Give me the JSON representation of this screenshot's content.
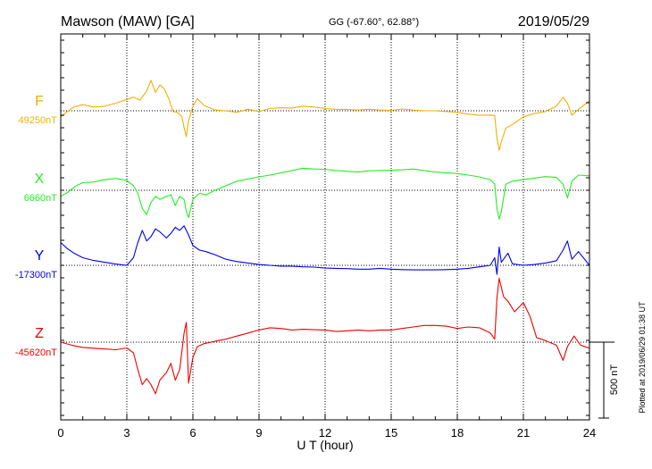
{
  "header": {
    "title": "Mawson (MAW)  [GA]",
    "coords": "GG (-67.60°,  62.88°)",
    "date": "2019/05/29"
  },
  "plotted_note": "Plotted at 2019/06/29 01:38 UT",
  "scale_bar": {
    "label": "500 nT",
    "value_nT": 500
  },
  "chart_data": {
    "type": "line",
    "title": "Mawson (MAW)  [GA]",
    "xlabel": "U T (hour)",
    "xlim": [
      0,
      24
    ],
    "xticks": [
      0,
      3,
      6,
      9,
      12,
      15,
      18,
      21,
      24
    ],
    "grid": true,
    "series": [
      {
        "name": "F",
        "baseline_label": "49250nT",
        "color": "#f0b000",
        "points": [
          [
            0,
            49210
          ],
          [
            0.3,
            49245
          ],
          [
            0.6,
            49275
          ],
          [
            1.0,
            49290
          ],
          [
            1.5,
            49275
          ],
          [
            2.0,
            49280
          ],
          [
            2.5,
            49300
          ],
          [
            3.0,
            49325
          ],
          [
            3.3,
            49340
          ],
          [
            3.6,
            49320
          ],
          [
            3.9,
            49380
          ],
          [
            4.1,
            49450
          ],
          [
            4.3,
            49370
          ],
          [
            4.5,
            49420
          ],
          [
            4.7,
            49395
          ],
          [
            4.9,
            49330
          ],
          [
            5.1,
            49245
          ],
          [
            5.3,
            49240
          ],
          [
            5.5,
            49210
          ],
          [
            5.6,
            49140
          ],
          [
            5.7,
            49080
          ],
          [
            5.8,
            49185
          ],
          [
            6.0,
            49280
          ],
          [
            6.2,
            49330
          ],
          [
            6.5,
            49285
          ],
          [
            7.0,
            49255
          ],
          [
            7.5,
            49250
          ],
          [
            8.0,
            49240
          ],
          [
            8.5,
            49260
          ],
          [
            9.0,
            49245
          ],
          [
            9.5,
            49265
          ],
          [
            10.0,
            49270
          ],
          [
            10.5,
            49268
          ],
          [
            11.0,
            49280
          ],
          [
            11.5,
            49275
          ],
          [
            12.0,
            49265
          ],
          [
            12.5,
            49260
          ],
          [
            13.0,
            49258
          ],
          [
            13.5,
            49255
          ],
          [
            14.0,
            49260
          ],
          [
            14.5,
            49255
          ],
          [
            15.0,
            49253
          ],
          [
            15.5,
            49262
          ],
          [
            16.0,
            49255
          ],
          [
            16.5,
            49250
          ],
          [
            17.0,
            49250
          ],
          [
            17.5,
            49245
          ],
          [
            18.0,
            49240
          ],
          [
            18.5,
            49228
          ],
          [
            19.0,
            49220
          ],
          [
            19.5,
            49222
          ],
          [
            19.7,
            49218
          ],
          [
            19.8,
            49070
          ],
          [
            19.9,
            48990
          ],
          [
            20.0,
            49045
          ],
          [
            20.2,
            49135
          ],
          [
            20.5,
            49160
          ],
          [
            20.8,
            49190
          ],
          [
            21.0,
            49210
          ],
          [
            21.5,
            49232
          ],
          [
            22.0,
            49245
          ],
          [
            22.5,
            49280
          ],
          [
            22.8,
            49340
          ],
          [
            23.0,
            49300
          ],
          [
            23.2,
            49220
          ],
          [
            23.5,
            49260
          ],
          [
            24.0,
            49315
          ]
        ]
      },
      {
        "name": "X",
        "baseline_label": "6660nT",
        "color": "#22ee22",
        "points": [
          [
            0,
            6620
          ],
          [
            0.3,
            6645
          ],
          [
            0.7,
            6690
          ],
          [
            1.0,
            6710
          ],
          [
            1.5,
            6715
          ],
          [
            2.0,
            6730
          ],
          [
            2.5,
            6738
          ],
          [
            3.0,
            6725
          ],
          [
            3.3,
            6690
          ],
          [
            3.5,
            6640
          ],
          [
            3.7,
            6540
          ],
          [
            3.9,
            6500
          ],
          [
            4.1,
            6580
          ],
          [
            4.3,
            6620
          ],
          [
            4.5,
            6600
          ],
          [
            4.8,
            6620
          ],
          [
            5.0,
            6630
          ],
          [
            5.2,
            6560
          ],
          [
            5.4,
            6620
          ],
          [
            5.6,
            6600
          ],
          [
            5.7,
            6520
          ],
          [
            5.8,
            6480
          ],
          [
            6.0,
            6600
          ],
          [
            6.3,
            6640
          ],
          [
            6.6,
            6630
          ],
          [
            7.0,
            6660
          ],
          [
            7.5,
            6690
          ],
          [
            8.0,
            6720
          ],
          [
            8.5,
            6735
          ],
          [
            9.0,
            6748
          ],
          [
            9.5,
            6760
          ],
          [
            10.0,
            6775
          ],
          [
            10.5,
            6790
          ],
          [
            11.0,
            6805
          ],
          [
            11.5,
            6800
          ],
          [
            12.0,
            6798
          ],
          [
            12.5,
            6790
          ],
          [
            13.0,
            6785
          ],
          [
            13.5,
            6780
          ],
          [
            14.0,
            6788
          ],
          [
            14.5,
            6790
          ],
          [
            15.0,
            6792
          ],
          [
            15.5,
            6795
          ],
          [
            16.0,
            6800
          ],
          [
            16.5,
            6790
          ],
          [
            17.0,
            6780
          ],
          [
            17.5,
            6775
          ],
          [
            18.0,
            6770
          ],
          [
            18.5,
            6760
          ],
          [
            19.0,
            6748
          ],
          [
            19.5,
            6730
          ],
          [
            19.7,
            6700
          ],
          [
            19.8,
            6540
          ],
          [
            19.9,
            6470
          ],
          [
            20.0,
            6520
          ],
          [
            20.2,
            6700
          ],
          [
            20.5,
            6720
          ],
          [
            21.0,
            6730
          ],
          [
            21.5,
            6740
          ],
          [
            22.0,
            6750
          ],
          [
            22.5,
            6745
          ],
          [
            22.8,
            6700
          ],
          [
            23.0,
            6610
          ],
          [
            23.2,
            6720
          ],
          [
            23.5,
            6760
          ],
          [
            24.0,
            6755
          ]
        ]
      },
      {
        "name": "Y",
        "baseline_label": "-17300nT",
        "color": "#0000ee",
        "points": [
          [
            0,
            -17150
          ],
          [
            0.3,
            -17190
          ],
          [
            0.6,
            -17220
          ],
          [
            1.0,
            -17250
          ],
          [
            1.5,
            -17268
          ],
          [
            2.0,
            -17280
          ],
          [
            2.5,
            -17292
          ],
          [
            3.0,
            -17300
          ],
          [
            3.3,
            -17250
          ],
          [
            3.5,
            -17150
          ],
          [
            3.7,
            -17070
          ],
          [
            3.9,
            -17140
          ],
          [
            4.1,
            -17110
          ],
          [
            4.3,
            -17060
          ],
          [
            4.5,
            -17080
          ],
          [
            4.8,
            -17120
          ],
          [
            5.0,
            -17090
          ],
          [
            5.2,
            -17050
          ],
          [
            5.4,
            -17070
          ],
          [
            5.6,
            -17040
          ],
          [
            5.8,
            -17100
          ],
          [
            6.0,
            -17170
          ],
          [
            6.3,
            -17200
          ],
          [
            6.6,
            -17210
          ],
          [
            7.0,
            -17230
          ],
          [
            7.5,
            -17260
          ],
          [
            8.0,
            -17275
          ],
          [
            8.5,
            -17285
          ],
          [
            9.0,
            -17295
          ],
          [
            9.5,
            -17300
          ],
          [
            10.0,
            -17305
          ],
          [
            10.5,
            -17305
          ],
          [
            11.0,
            -17310
          ],
          [
            11.5,
            -17312
          ],
          [
            12.0,
            -17318
          ],
          [
            12.5,
            -17320
          ],
          [
            13.0,
            -17322
          ],
          [
            13.5,
            -17325
          ],
          [
            14.0,
            -17325
          ],
          [
            14.5,
            -17320
          ],
          [
            15.0,
            -17325
          ],
          [
            15.5,
            -17328
          ],
          [
            16.0,
            -17330
          ],
          [
            16.5,
            -17330
          ],
          [
            17.0,
            -17330
          ],
          [
            17.5,
            -17328
          ],
          [
            18.0,
            -17325
          ],
          [
            18.5,
            -17320
          ],
          [
            19.0,
            -17310
          ],
          [
            19.5,
            -17300
          ],
          [
            19.7,
            -17250
          ],
          [
            19.8,
            -17360
          ],
          [
            19.9,
            -17180
          ],
          [
            20.0,
            -17280
          ],
          [
            20.3,
            -17220
          ],
          [
            20.5,
            -17290
          ],
          [
            21.0,
            -17300
          ],
          [
            21.5,
            -17295
          ],
          [
            22.0,
            -17285
          ],
          [
            22.5,
            -17270
          ],
          [
            22.8,
            -17200
          ],
          [
            23.0,
            -17140
          ],
          [
            23.2,
            -17260
          ],
          [
            23.5,
            -17210
          ],
          [
            24.0,
            -17300
          ]
        ]
      },
      {
        "name": "Z",
        "baseline_label": "-45620nT",
        "color": "#ee0000",
        "points": [
          [
            0,
            -45620
          ],
          [
            0.5,
            -45640
          ],
          [
            1.0,
            -45655
          ],
          [
            1.5,
            -45660
          ],
          [
            2.0,
            -45665
          ],
          [
            2.5,
            -45670
          ],
          [
            3.0,
            -45658
          ],
          [
            3.3,
            -45690
          ],
          [
            3.5,
            -45800
          ],
          [
            3.7,
            -45900
          ],
          [
            3.9,
            -45860
          ],
          [
            4.1,
            -45900
          ],
          [
            4.3,
            -45960
          ],
          [
            4.5,
            -45870
          ],
          [
            4.8,
            -45820
          ],
          [
            5.0,
            -45760
          ],
          [
            5.2,
            -45870
          ],
          [
            5.4,
            -45800
          ],
          [
            5.6,
            -45560
          ],
          [
            5.7,
            -45490
          ],
          [
            5.8,
            -45890
          ],
          [
            6.0,
            -45720
          ],
          [
            6.2,
            -45650
          ],
          [
            6.5,
            -45630
          ],
          [
            7.0,
            -45615
          ],
          [
            7.5,
            -45600
          ],
          [
            8.0,
            -45580
          ],
          [
            8.5,
            -45560
          ],
          [
            9.0,
            -45540
          ],
          [
            9.5,
            -45525
          ],
          [
            10.0,
            -45530
          ],
          [
            10.5,
            -45540
          ],
          [
            11.0,
            -45535
          ],
          [
            11.5,
            -45538
          ],
          [
            12.0,
            -45540
          ],
          [
            12.5,
            -45550
          ],
          [
            13.0,
            -45545
          ],
          [
            13.5,
            -45540
          ],
          [
            14.0,
            -45545
          ],
          [
            14.5,
            -45540
          ],
          [
            15.0,
            -45540
          ],
          [
            15.5,
            -45530
          ],
          [
            16.0,
            -45520
          ],
          [
            16.5,
            -45510
          ],
          [
            17.0,
            -45510
          ],
          [
            17.5,
            -45515
          ],
          [
            18.0,
            -45530
          ],
          [
            18.5,
            -45520
          ],
          [
            19.0,
            -45525
          ],
          [
            19.5,
            -45560
          ],
          [
            19.7,
            -45600
          ],
          [
            19.8,
            -45330
          ],
          [
            19.9,
            -45200
          ],
          [
            20.1,
            -45320
          ],
          [
            20.3,
            -45350
          ],
          [
            20.6,
            -45420
          ],
          [
            21.0,
            -45360
          ],
          [
            21.3,
            -45450
          ],
          [
            21.6,
            -45590
          ],
          [
            22.0,
            -45610
          ],
          [
            22.5,
            -45640
          ],
          [
            22.8,
            -45740
          ],
          [
            23.0,
            -45650
          ],
          [
            23.3,
            -45580
          ],
          [
            23.6,
            -45640
          ],
          [
            24.0,
            -45660
          ]
        ]
      }
    ]
  }
}
